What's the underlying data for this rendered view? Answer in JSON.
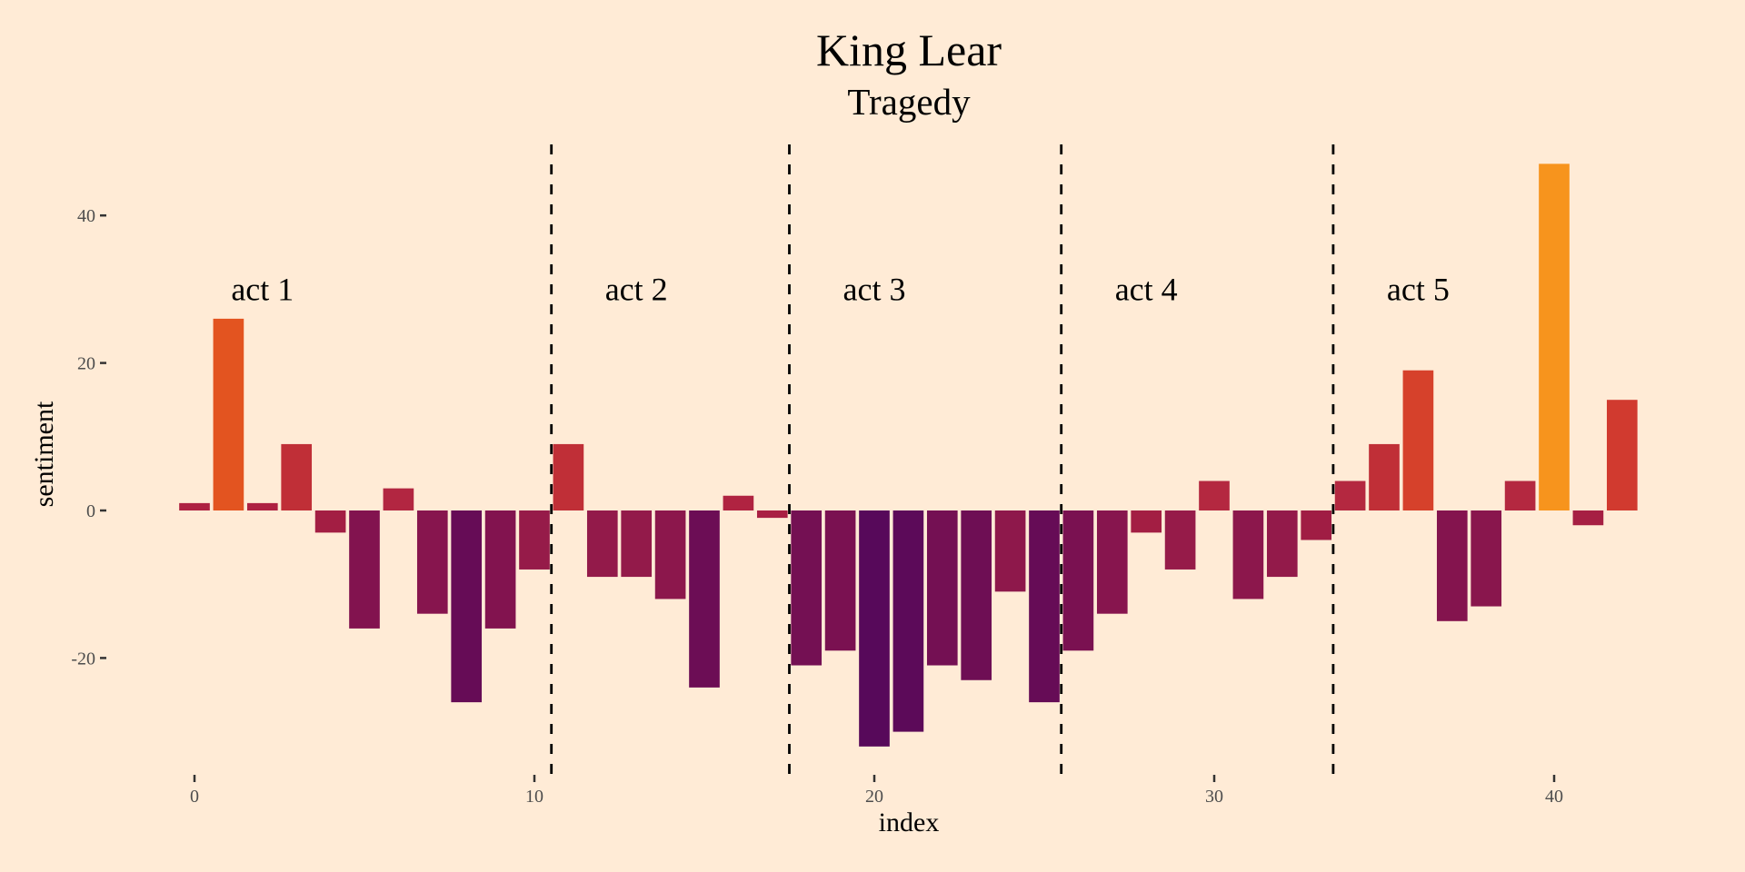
{
  "chart_data": {
    "type": "bar",
    "title": "King Lear",
    "subtitle": "Tragedy",
    "xlabel": "index",
    "ylabel": "sentiment",
    "xlim": [
      -1.5,
      43.5
    ],
    "ylim": [
      -38,
      51
    ],
    "x_ticks": [
      0,
      10,
      20,
      30,
      40
    ],
    "x_tick_labels": [
      "0",
      "10",
      "20",
      "30",
      "40"
    ],
    "y_ticks": [
      -20,
      0,
      20,
      40
    ],
    "y_tick_labels": [
      "-20",
      "0",
      "20",
      "40"
    ],
    "grid": false,
    "legend": "none",
    "x": [
      0,
      1,
      2,
      3,
      4,
      5,
      6,
      7,
      8,
      9,
      10,
      11,
      12,
      13,
      14,
      15,
      16,
      17,
      18,
      19,
      20,
      21,
      22,
      23,
      24,
      25,
      26,
      27,
      28,
      29,
      30,
      31,
      32,
      33,
      34,
      35,
      36,
      37,
      38,
      39,
      40,
      41,
      42
    ],
    "values": [
      1,
      26,
      1,
      9,
      -3,
      -16,
      3,
      -14,
      -26,
      -16,
      -8,
      9,
      -9,
      -9,
      -12,
      -24,
      2,
      -1,
      -21,
      -19,
      -32,
      -30,
      -21,
      -23,
      -11,
      -26,
      -19,
      -14,
      -3,
      -8,
      4,
      -12,
      -9,
      -4,
      4,
      9,
      19,
      -15,
      -13,
      4,
      47,
      -2,
      15
    ],
    "fill_scale": {
      "by": "value",
      "stops": [
        {
          "value": -32,
          "color": "#57095a"
        },
        {
          "value": -26,
          "color": "#660c56"
        },
        {
          "value": -16,
          "color": "#82134f"
        },
        {
          "value": -9,
          "color": "#931a4a"
        },
        {
          "value": -3,
          "color": "#a31e43"
        },
        {
          "value": 1,
          "color": "#ae2142"
        },
        {
          "value": 4,
          "color": "#b42840"
        },
        {
          "value": 9,
          "color": "#c02f37"
        },
        {
          "value": 15,
          "color": "#d13a2f"
        },
        {
          "value": 19,
          "color": "#d6412b"
        },
        {
          "value": 26,
          "color": "#e35420"
        },
        {
          "value": 47,
          "color": "#f7941d"
        }
      ]
    },
    "act_dividers": [
      10.5,
      17.5,
      25.5,
      33.5
    ],
    "act_labels": [
      {
        "text": "act 1",
        "x": 2,
        "y": 30
      },
      {
        "text": "act 2",
        "x": 13,
        "y": 30
      },
      {
        "text": "act 3",
        "x": 20,
        "y": 30
      },
      {
        "text": "act 4",
        "x": 28,
        "y": 30
      },
      {
        "text": "act 5",
        "x": 36,
        "y": 30
      }
    ]
  },
  "colors": {
    "background": "#ffebd6",
    "divider": "#000000",
    "tick_text": "#4d4d4d"
  }
}
